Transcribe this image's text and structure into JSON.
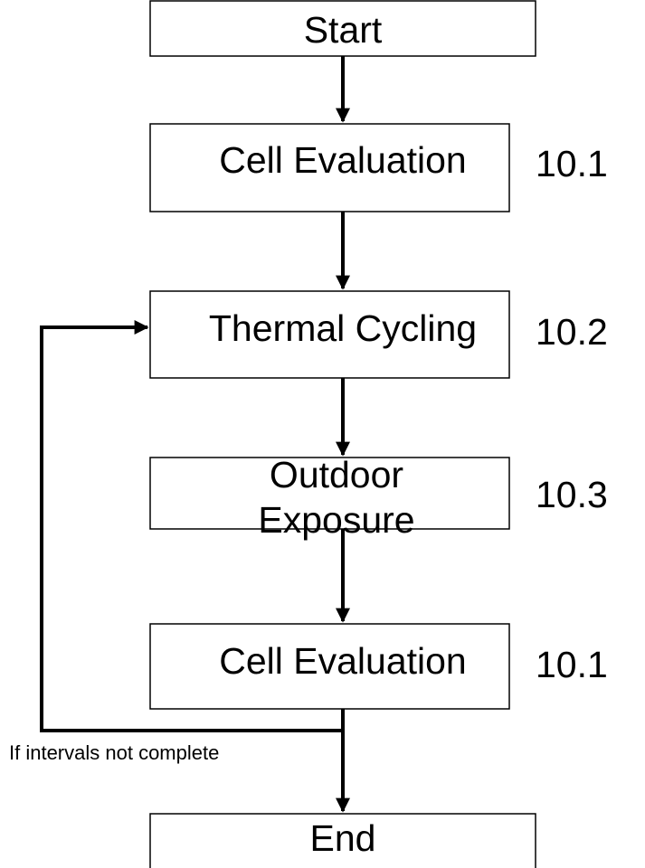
{
  "nodes": [
    {
      "label": "Start"
    },
    {
      "label": "Cell Evaluation",
      "section": "10.1"
    },
    {
      "label": "Thermal Cycling",
      "section": "10.2"
    },
    {
      "label": [
        "Outdoor",
        "Exposure"
      ],
      "section": "10.3"
    },
    {
      "label": "Cell Evaluation",
      "section": "10.1"
    },
    {
      "label": "End"
    }
  ],
  "loop_label": "If intervals not complete"
}
